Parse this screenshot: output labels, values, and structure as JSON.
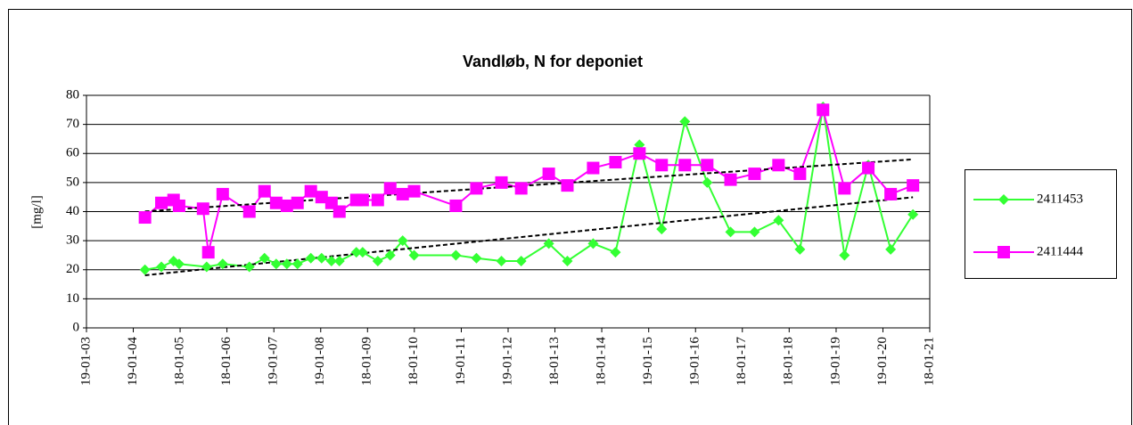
{
  "chart_data": {
    "type": "line",
    "title": "Vandløb, N for deponiet",
    "y_label": "[mg/l]",
    "xlim": [
      "2003-01-19",
      "2021-01-18"
    ],
    "xticks": [
      {
        "value": "2003-01-19",
        "label": "19-01-03"
      },
      {
        "value": "2004-01-19",
        "label": "19-01-04"
      },
      {
        "value": "2005-01-18",
        "label": "18-01-05"
      },
      {
        "value": "2006-01-18",
        "label": "18-01-06"
      },
      {
        "value": "2007-01-19",
        "label": "19-01-07"
      },
      {
        "value": "2008-01-19",
        "label": "19-01-08"
      },
      {
        "value": "2009-01-18",
        "label": "18-01-09"
      },
      {
        "value": "2010-01-18",
        "label": "18-01-10"
      },
      {
        "value": "2011-01-19",
        "label": "19-01-11"
      },
      {
        "value": "2012-01-19",
        "label": "19-01-12"
      },
      {
        "value": "2013-01-18",
        "label": "18-01-13"
      },
      {
        "value": "2014-01-18",
        "label": "18-01-14"
      },
      {
        "value": "2015-01-19",
        "label": "19-01-15"
      },
      {
        "value": "2016-01-19",
        "label": "19-01-16"
      },
      {
        "value": "2017-01-18",
        "label": "18-01-17"
      },
      {
        "value": "2018-01-18",
        "label": "18-01-18"
      },
      {
        "value": "2019-01-19",
        "label": "19-01-19"
      },
      {
        "value": "2020-01-19",
        "label": "19-01-20"
      },
      {
        "value": "2021-01-18",
        "label": "18-01-21"
      }
    ],
    "ylim": [
      0,
      80
    ],
    "yticks": [
      0,
      10,
      20,
      30,
      40,
      50,
      60,
      70,
      80
    ],
    "grid": true,
    "trendline": true,
    "legend": "right",
    "series": [
      {
        "name": "2411453",
        "color": "#33ff33",
        "marker": "diamond",
        "x": [
          "2004-04-19",
          "2004-08-25",
          "2004-11-28",
          "2005-01-10",
          "2005-08-13",
          "2005-12-16",
          "2006-07-12",
          "2006-11-07",
          "2007-02-06",
          "2007-04-30",
          "2007-07-22",
          "2007-11-03",
          "2008-01-26",
          "2008-04-12",
          "2008-06-13",
          "2008-10-23",
          "2008-12-11",
          "2009-04-08",
          "2009-07-14",
          "2009-10-19",
          "2010-01-16",
          "2010-12-08",
          "2011-05-17",
          "2011-11-28",
          "2012-04-30",
          "2012-12-01",
          "2013-04-25",
          "2013-11-12",
          "2014-05-05",
          "2014-11-08",
          "2015-04-30",
          "2015-10-28",
          "2016-04-19",
          "2016-10-18",
          "2017-04-23",
          "2017-10-27",
          "2018-04-12",
          "2018-10-09",
          "2019-03-25",
          "2019-09-27",
          "2020-03-19",
          "2020-09-09"
        ],
        "values": [
          20,
          21,
          23,
          22,
          21,
          22,
          21,
          24,
          22,
          22,
          22,
          24,
          24,
          23,
          23,
          26,
          26,
          23,
          25,
          30,
          25,
          25,
          24,
          23,
          23,
          29,
          23,
          29,
          26,
          63,
          34,
          71,
          50,
          33,
          33,
          37,
          27,
          76,
          25,
          56,
          27,
          39
        ]
      },
      {
        "name": "2411444",
        "color": "#ff00ff",
        "marker": "square",
        "x": [
          "2004-04-19",
          "2004-08-25",
          "2004-11-28",
          "2005-01-10",
          "2005-07-16",
          "2005-08-26",
          "2005-12-16",
          "2006-07-12",
          "2006-11-07",
          "2007-02-06",
          "2007-04-30",
          "2007-07-22",
          "2007-11-03",
          "2008-01-26",
          "2008-04-12",
          "2008-06-13",
          "2008-10-23",
          "2008-12-11",
          "2009-04-08",
          "2009-07-14",
          "2009-10-19",
          "2010-01-16",
          "2010-12-08",
          "2011-05-17",
          "2011-11-28",
          "2012-04-30",
          "2012-12-01",
          "2013-04-25",
          "2013-11-12",
          "2014-05-05",
          "2014-11-08",
          "2015-04-30",
          "2015-10-28",
          "2016-04-19",
          "2016-10-18",
          "2017-04-23",
          "2017-10-27",
          "2018-04-12",
          "2018-10-09",
          "2019-03-25",
          "2019-09-27",
          "2020-03-19",
          "2020-09-09"
        ],
        "values": [
          38,
          43,
          44,
          42,
          41,
          26,
          46,
          40,
          47,
          43,
          42,
          43,
          47,
          45,
          43,
          40,
          44,
          44,
          44,
          48,
          46,
          47,
          42,
          48,
          50,
          48,
          53,
          49,
          55,
          57,
          60,
          56,
          56,
          56,
          51,
          53,
          56,
          53,
          75,
          48,
          55,
          46,
          49
        ]
      }
    ]
  }
}
